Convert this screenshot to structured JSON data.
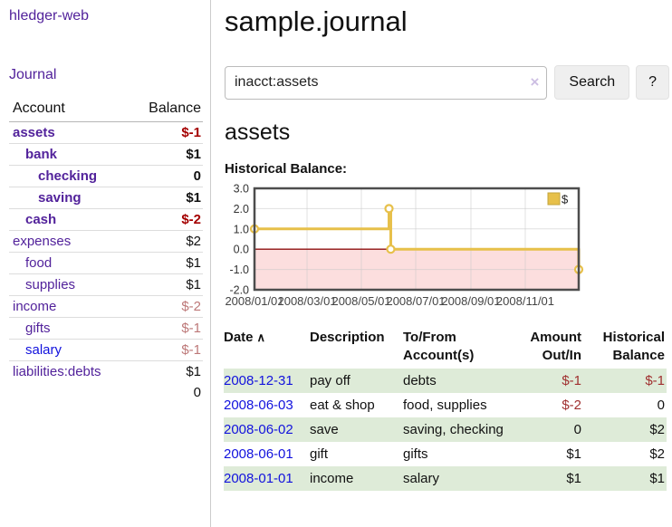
{
  "sidebar": {
    "brand": "hledger-web",
    "journal_link": "Journal",
    "accounts_table": {
      "headers": {
        "account": "Account",
        "balance": "Balance"
      },
      "rows": [
        {
          "name": "assets",
          "balance": "$-1",
          "level": 1,
          "bold": true,
          "neg": "strong"
        },
        {
          "name": "bank",
          "balance": "$1",
          "level": 2,
          "bold": true
        },
        {
          "name": "checking",
          "balance": "0",
          "level": 3,
          "bold": true
        },
        {
          "name": "saving",
          "balance": "$1",
          "level": 3,
          "bold": true
        },
        {
          "name": "cash",
          "balance": "$-2",
          "level": 2,
          "bold": true,
          "neg": "strong"
        },
        {
          "name": "expenses",
          "balance": "$2",
          "level": 1
        },
        {
          "name": "food",
          "balance": "$1",
          "level": 2
        },
        {
          "name": "supplies",
          "balance": "$1",
          "level": 2
        },
        {
          "name": "income",
          "balance": "$-2",
          "level": 1,
          "neg": "muted"
        },
        {
          "name": "gifts",
          "balance": "$-1",
          "level": 2,
          "neg": "muted"
        },
        {
          "name": "salary",
          "balance": "$-1",
          "level": 2,
          "neg": "muted",
          "link_blue": true
        },
        {
          "name": "liabilities:debts",
          "balance": "$1",
          "level": 1
        }
      ],
      "total": "0"
    }
  },
  "header": {
    "title": "sample.journal"
  },
  "search": {
    "value": "inacct:assets",
    "clear_icon": "×",
    "search_label": "Search",
    "help_label": "?"
  },
  "account_page": {
    "heading": "assets",
    "chart_label": "Historical Balance:"
  },
  "chart_data": {
    "type": "line",
    "step": true,
    "title": "Historical Balance",
    "legend": [
      "$"
    ],
    "legend_position": "top-right",
    "x_ticks": [
      "2008/01/01",
      "2008/03/01",
      "2008/05/01",
      "2008/07/01",
      "2008/09/01",
      "2008/11/01"
    ],
    "y_ticks": [
      3.0,
      2.0,
      1.0,
      0.0,
      -1.0,
      -2.0
    ],
    "ylim": [
      -2,
      3
    ],
    "x_range": [
      "2008/01/01",
      "2008/12/31"
    ],
    "grid": true,
    "series": [
      {
        "name": "$",
        "points": [
          {
            "date": "2008/01/01",
            "value": 1
          },
          {
            "date": "2008/06/01",
            "value": 2
          },
          {
            "date": "2008/06/03",
            "value": 0
          },
          {
            "date": "2008/12/31",
            "value": -1
          }
        ]
      }
    ],
    "line_color": "#e7c04a",
    "marker_fill": "#ffffff",
    "negative_region_color": "#fcdede",
    "zero_line_color": "#8f1010",
    "border_color": "#4d4d4d"
  },
  "register_table": {
    "headers": {
      "date": "Date",
      "sort_icon": "∧",
      "description": "Description",
      "accounts": "To/From Account(s)",
      "amount": "Amount Out/In",
      "balance": "Historical Balance"
    },
    "rows": [
      {
        "date": "2008-12-31",
        "description": "pay off",
        "accounts": "debts",
        "amount": "$-1",
        "balance": "$-1",
        "amount_neg": true,
        "balance_neg": true,
        "shaded": true
      },
      {
        "date": "2008-06-03",
        "description": "eat & shop",
        "accounts": "food, supplies",
        "amount": "$-2",
        "balance": "0",
        "amount_neg": true,
        "balance_neg": false,
        "shaded": false
      },
      {
        "date": "2008-06-02",
        "description": "save",
        "accounts": "saving, checking",
        "amount": "0",
        "balance": "$2",
        "amount_neg": false,
        "balance_neg": false,
        "shaded": true
      },
      {
        "date": "2008-06-01",
        "description": "gift",
        "accounts": "gifts",
        "amount": "$1",
        "balance": "$2",
        "amount_neg": false,
        "balance_neg": false,
        "shaded": false
      },
      {
        "date": "2008-01-01",
        "description": "income",
        "accounts": "salary",
        "amount": "$1",
        "balance": "$1",
        "amount_neg": false,
        "balance_neg": false,
        "shaded": true
      }
    ]
  }
}
